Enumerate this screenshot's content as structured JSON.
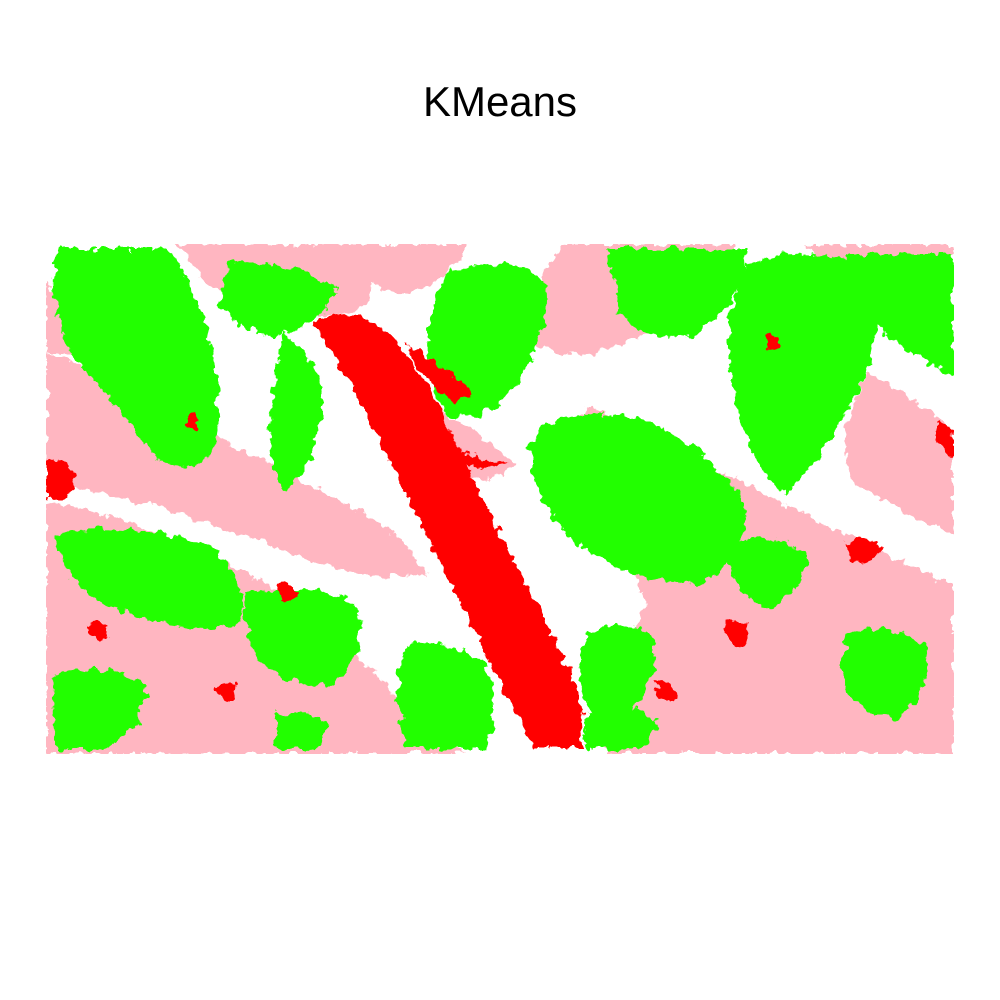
{
  "title": "KMeans",
  "segmentation": {
    "clusters": [
      {
        "label": "cluster-green",
        "color": "#22ff00"
      },
      {
        "label": "cluster-pink",
        "color": "#ffb6c1"
      },
      {
        "label": "cluster-red",
        "color": "#ff0000"
      },
      {
        "label": "cluster-white",
        "color": "#ffffff"
      }
    ]
  }
}
